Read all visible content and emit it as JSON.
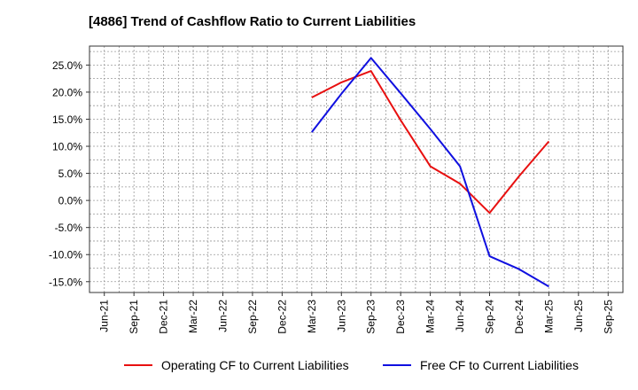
{
  "chart_data": {
    "type": "line",
    "title": "[4886]  Trend of Cashflow Ratio to Current Liabilities",
    "xlabel": "",
    "ylabel": "",
    "x_ticks": [
      "Jun-21",
      "Sep-21",
      "Dec-21",
      "Mar-22",
      "Jun-22",
      "Sep-22",
      "Dec-22",
      "Mar-23",
      "Jun-23",
      "Sep-23",
      "Dec-23",
      "Mar-24",
      "Jun-24",
      "Sep-24",
      "Dec-24",
      "Mar-25",
      "Jun-25",
      "Sep-25"
    ],
    "y_ticks": [
      "25.0%",
      "20.0%",
      "15.0%",
      "10.0%",
      "5.0%",
      "0.0%",
      "-5.0%",
      "-10.0%",
      "-15.0%"
    ],
    "y_tick_values": [
      25,
      20,
      15,
      10,
      5,
      0,
      -5,
      -10,
      -15
    ],
    "ylim": [
      -17,
      28.5
    ],
    "grid": true,
    "legend_position": "bottom",
    "series": [
      {
        "name": "Operating CF to Current Liabilities",
        "color": "#e81010",
        "x": [
          "Mar-23",
          "Jun-23",
          "Sep-23",
          "Dec-23",
          "Mar-24",
          "Jun-24",
          "Sep-24",
          "Dec-24",
          "Mar-25"
        ],
        "values": [
          19.0,
          21.8,
          23.9,
          14.8,
          6.3,
          3.1,
          -2.3,
          4.5,
          10.9
        ]
      },
      {
        "name": "Free CF to Current Liabilities",
        "color": "#1010e0",
        "x": [
          "Mar-23",
          "Jun-23",
          "Sep-23",
          "Dec-23",
          "Mar-24",
          "Jun-24",
          "Sep-24",
          "Dec-24",
          "Mar-25"
        ],
        "values": [
          12.6,
          19.7,
          26.3,
          19.8,
          13.2,
          6.3,
          -10.3,
          -12.7,
          -15.9
        ]
      }
    ]
  }
}
